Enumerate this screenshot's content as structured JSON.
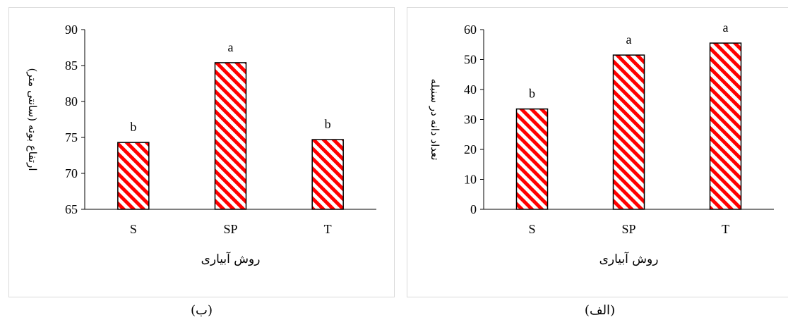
{
  "chart_data": [
    {
      "type": "bar",
      "caption": "(ب)",
      "categories": [
        "S",
        "SP",
        "T"
      ],
      "values": [
        74.3,
        85.4,
        74.7
      ],
      "labels": [
        "b",
        "a",
        "b"
      ],
      "xlabel": "روش آبیاری",
      "ylabel": "ارتفاع بوته (سانتی متر)",
      "ylim": [
        65,
        90
      ],
      "yticks": [
        65,
        70,
        75,
        80,
        85,
        90
      ],
      "bar_colors": {
        "primary": "#ff0000",
        "secondary": "#ffffff",
        "border": "#000000"
      },
      "legend": "none",
      "grid": false
    },
    {
      "type": "bar",
      "caption": "(الف)",
      "categories": [
        "S",
        "SP",
        "T"
      ],
      "values": [
        33.5,
        51.5,
        55.5
      ],
      "labels": [
        "b",
        "a",
        "a"
      ],
      "xlabel": "روش آبیاری",
      "ylabel": "تعداد دانه در سنبله",
      "ylim": [
        0,
        60
      ],
      "yticks": [
        0,
        10,
        20,
        30,
        40,
        50,
        60
      ],
      "bar_colors": {
        "primary": "#ff0000",
        "secondary": "#ffffff",
        "border": "#000000"
      },
      "legend": "none",
      "grid": false
    }
  ]
}
